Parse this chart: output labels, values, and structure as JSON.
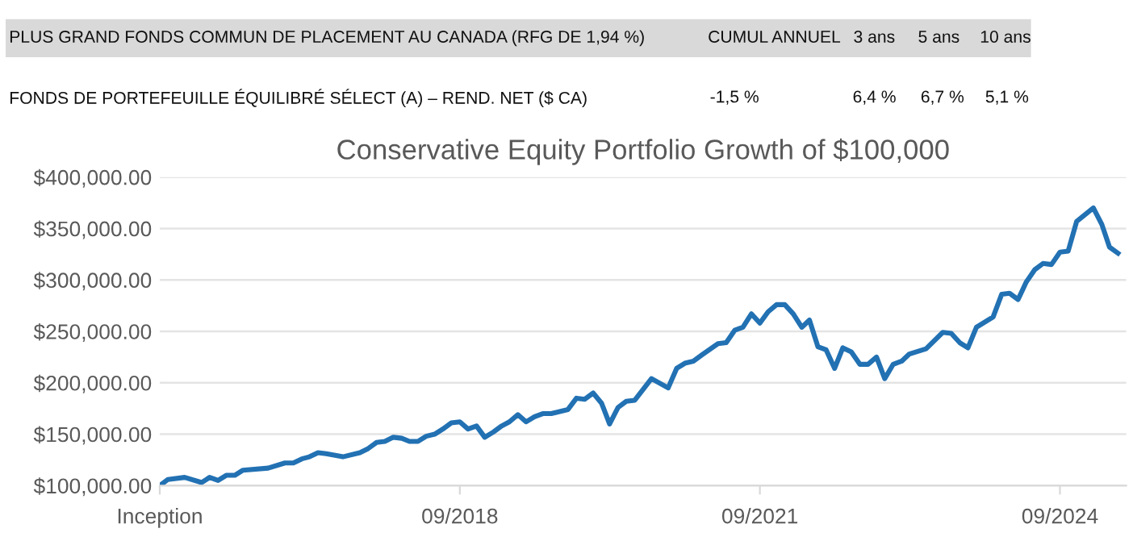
{
  "chart_data": {
    "type": "line",
    "title": "Conservative Equity Portfolio Growth of $100,000",
    "annotations": [
      "PLUS GRAND FONDS COMMUN DE PLACEMENT AU CANADA (RFG DE 1,94 %)",
      "CUMUL ANNUEL",
      "3 ans",
      "5 ans",
      "10 ans",
      "FONDS DE PORTEFEUILLE ÉQUILIBRÉ SÉLECT (A) – REND. NET ($ CA)",
      "-1,5 %",
      "6,4 %",
      "6,7 %",
      "5,1 %"
    ],
    "series": [
      {
        "color": "#2271b3",
        "x": [
          "2015-09",
          "2015-10",
          "2015-12",
          "2016-02",
          "2016-03",
          "2016-04",
          "2016-05",
          "2016-06",
          "2016-07",
          "2016-10",
          "2016-12",
          "2017-01",
          "2017-02",
          "2017-03",
          "2017-04",
          "2017-05",
          "2017-07",
          "2017-09",
          "2017-10",
          "2017-11",
          "2017-12",
          "2018-01",
          "2018-02",
          "2018-03",
          "2018-04",
          "2018-05",
          "2018-06",
          "2018-07",
          "2018-08",
          "2018-09",
          "2018-10",
          "2018-11",
          "2018-12",
          "2019-01",
          "2019-02",
          "2019-03",
          "2019-04",
          "2019-05",
          "2019-06",
          "2019-07",
          "2019-08",
          "2019-10",
          "2019-11",
          "2019-12",
          "2020-01",
          "2020-02",
          "2020-03",
          "2020-04",
          "2020-05",
          "2020-06",
          "2020-08",
          "2020-10",
          "2020-11",
          "2020-12",
          "2021-01",
          "2021-02",
          "2021-04",
          "2021-05",
          "2021-06",
          "2021-07",
          "2021-08",
          "2021-09",
          "2021-10",
          "2021-11",
          "2021-12",
          "2022-01",
          "2022-02",
          "2022-03",
          "2022-04",
          "2022-05",
          "2022-06",
          "2022-07",
          "2022-08",
          "2022-09",
          "2022-10",
          "2022-11",
          "2022-12",
          "2023-01",
          "2023-02",
          "2023-03",
          "2023-05",
          "2023-07",
          "2023-08",
          "2023-09",
          "2023-10",
          "2023-11",
          "2024-01",
          "2024-02",
          "2024-03",
          "2024-04",
          "2024-05",
          "2024-06",
          "2024-07",
          "2024-08",
          "2024-09",
          "2024-10",
          "2024-11",
          "2025-01",
          "2025-02",
          "2025-03",
          "2025-04"
        ],
        "values": [
          100000,
          106000,
          108000,
          103000,
          108000,
          105000,
          110000,
          110000,
          115000,
          117000,
          122000,
          122000,
          126000,
          128000,
          132000,
          131000,
          128000,
          132000,
          136000,
          142000,
          143000,
          147000,
          146000,
          143000,
          143000,
          148000,
          150000,
          155000,
          161000,
          162000,
          155000,
          158000,
          147000,
          152000,
          158000,
          162000,
          169000,
          162000,
          167000,
          170000,
          170000,
          174000,
          185000,
          184000,
          190000,
          180000,
          160000,
          176000,
          182000,
          183000,
          204000,
          195000,
          214000,
          219000,
          221000,
          227000,
          238000,
          239000,
          251000,
          254000,
          267000,
          258000,
          269000,
          276000,
          276000,
          267000,
          254000,
          261000,
          235000,
          232000,
          214000,
          234000,
          230000,
          218000,
          218000,
          225000,
          204000,
          218000,
          221000,
          228000,
          233000,
          249000,
          248000,
          239000,
          234000,
          254000,
          264000,
          286000,
          287000,
          281000,
          298000,
          310000,
          316000,
          315000,
          327000,
          328000,
          357000,
          370000,
          354000,
          332000,
          326000
        ]
      }
    ],
    "xlim": [
      "2015-09",
      "2025-05"
    ],
    "xticks": [
      {
        "value": "2015-09",
        "label": "Inception"
      },
      {
        "value": "2018-09",
        "label": "09/2018"
      },
      {
        "value": "2021-09",
        "label": "09/2021"
      },
      {
        "value": "2024-09",
        "label": "09/2024"
      }
    ],
    "ylim": [
      100000,
      400000
    ],
    "yticks": [
      {
        "value": 100000,
        "label": "$100,000.00"
      },
      {
        "value": 150000,
        "label": "$150,000.00"
      },
      {
        "value": 200000,
        "label": "$200,000.00"
      },
      {
        "value": 250000,
        "label": "$250,000.00"
      },
      {
        "value": 300000,
        "label": "$300,000.00"
      },
      {
        "value": 350000,
        "label": "$350,000.00"
      },
      {
        "value": 400000,
        "label": "$400,000.00"
      }
    ],
    "grid": "y",
    "legend": false,
    "marker": "none",
    "line_style": "solid"
  }
}
